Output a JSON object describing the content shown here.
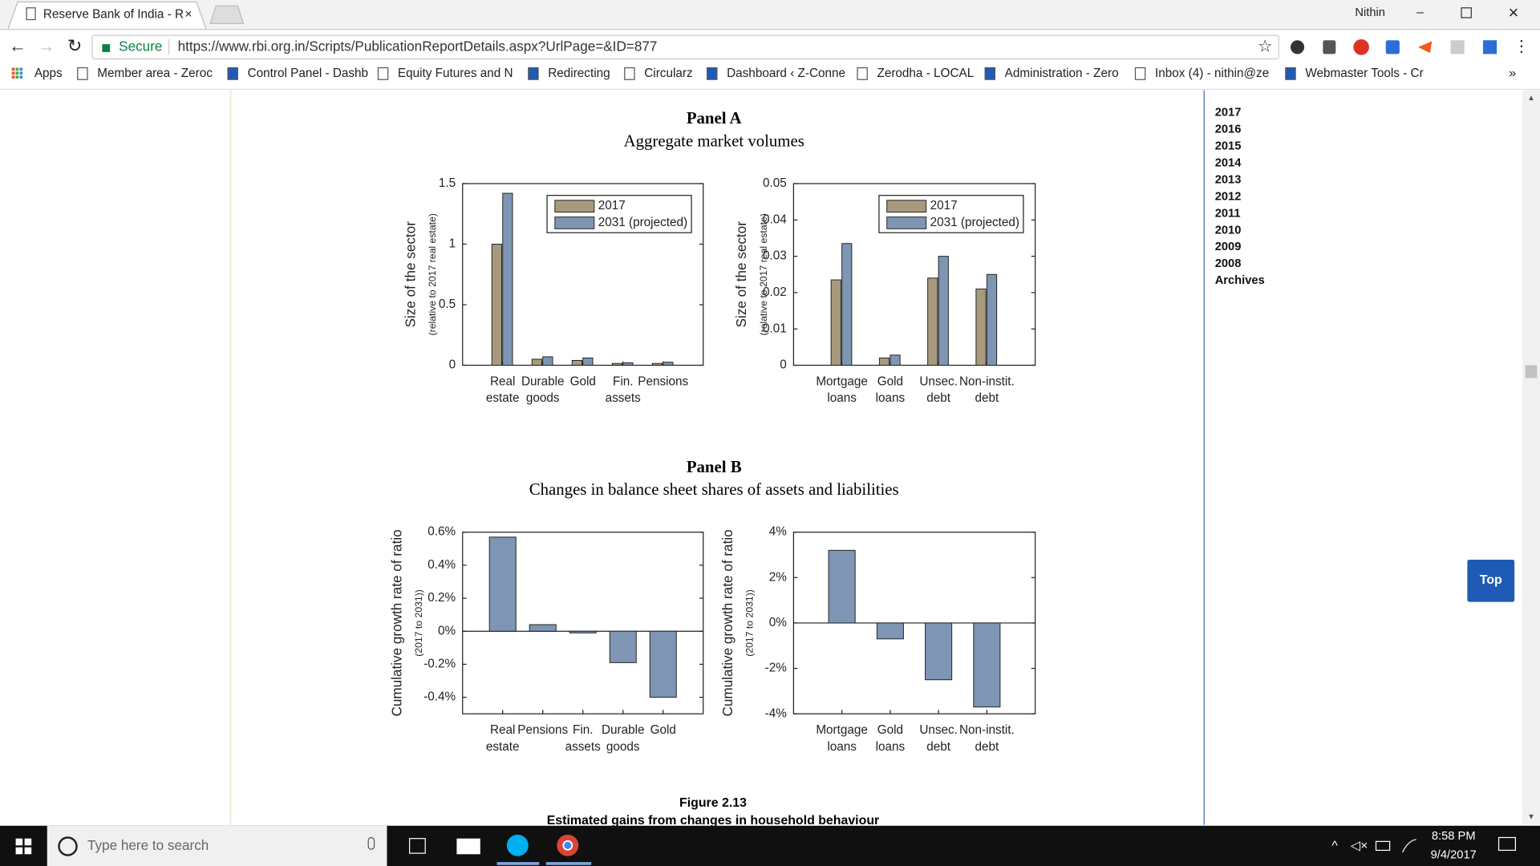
{
  "browser": {
    "tab_title": "Reserve Bank of India - R",
    "user": "Nithin",
    "secure": "Secure",
    "url": "https://www.rbi.org.in/Scripts/PublicationReportDetails.aspx?UrlPage=&ID=877",
    "bookmarks": [
      "Apps",
      "Member area - Zeroc",
      "Control Panel - Dashb",
      "Equity Futures and N",
      "Redirecting",
      "Circularz",
      "Dashboard ‹ Z-Conne",
      "Zerodha - LOCAL",
      "Administration - Zero",
      "Inbox (4) - nithin@ze",
      "Webmaster Tools - Cr"
    ]
  },
  "panels": [
    {
      "title": "Panel A",
      "subtitle": "Aggregate market volumes",
      "charts": [
        {
          "type": "bar",
          "categories": [
            [
              "Real",
              "estate"
            ],
            [
              "Durable",
              "goods"
            ],
            [
              "Gold"
            ],
            [
              "Fin.",
              "assets"
            ],
            [
              "Pensions"
            ]
          ],
          "ylabel": "Size of the sector",
          "ylabel_note": "(relative to 2017 real estate)",
          "ylim": [
            0,
            1.5
          ],
          "yticks": [
            0,
            0.5,
            1,
            1.5
          ],
          "legend": "upper right",
          "series": [
            {
              "name": "2017",
              "color": "#a79a7c",
              "values": [
                1.0,
                0.05,
                0.04,
                0.015,
                0.015
              ]
            },
            {
              "name": "2031 (projected)",
              "color": "#7e96b4",
              "values": [
                1.42,
                0.07,
                0.06,
                0.02,
                0.025
              ]
            }
          ]
        },
        {
          "type": "bar",
          "categories": [
            [
              "Mortgage",
              "loans"
            ],
            [
              "Gold",
              "loans"
            ],
            [
              "Unsec.",
              "debt"
            ],
            [
              "Non-instit.",
              "debt"
            ]
          ],
          "ylabel": "Size of the sector",
          "ylabel_note": "(relative to 2017 real estate)",
          "ylim": [
            0,
            0.05
          ],
          "yticks": [
            0,
            0.01,
            0.02,
            0.03,
            0.04,
            0.05
          ],
          "legend": "upper right",
          "series": [
            {
              "name": "2017",
              "color": "#a79a7c",
              "values": [
                0.0235,
                0.002,
                0.024,
                0.021
              ]
            },
            {
              "name": "2031 (projected)",
              "color": "#7e96b4",
              "values": [
                0.0335,
                0.0028,
                0.03,
                0.025
              ]
            }
          ]
        }
      ]
    },
    {
      "title": "Panel B",
      "subtitle": "Changes in balance sheet shares of assets and liabilities",
      "charts": [
        {
          "type": "bar",
          "categories": [
            [
              "Real",
              "estate"
            ],
            [
              "Pensions"
            ],
            [
              "Fin.",
              "assets"
            ],
            [
              "Durable",
              "goods"
            ],
            [
              "Gold"
            ]
          ],
          "ylabel": "Cumulative growth rate of ratio",
          "ylabel_note": "(2017 to 2031))",
          "ylim": [
            -0.5,
            0.6
          ],
          "yticks": [
            {
              "value": -0.4,
              "label": "-0.4%"
            },
            {
              "value": -0.2,
              "label": "-0.2%"
            },
            {
              "value": 0,
              "label": "0%"
            },
            {
              "value": 0.2,
              "label": "0.2%"
            },
            {
              "value": 0.4,
              "label": "0.4%"
            },
            {
              "value": 0.6,
              "label": "0.6%"
            }
          ],
          "series": [
            {
              "color": "#7e96b4",
              "values": [
                0.57,
                0.04,
                -0.01,
                -0.19,
                -0.4
              ]
            }
          ]
        },
        {
          "type": "bar",
          "categories": [
            [
              "Mortgage",
              "loans"
            ],
            [
              "Gold",
              "loans"
            ],
            [
              "Unsec.",
              "debt"
            ],
            [
              "Non-instit.",
              "debt"
            ]
          ],
          "ylabel": "Cumulative growth rate of ratio",
          "ylabel_note": "(2017 to 2031))",
          "ylim": [
            -4,
            4
          ],
          "yticks": [
            {
              "value": -4,
              "label": "-4%"
            },
            {
              "value": -2,
              "label": "-2%"
            },
            {
              "value": 0,
              "label": "0%"
            },
            {
              "value": 2,
              "label": "2%"
            },
            {
              "value": 4,
              "label": "4%"
            }
          ],
          "series": [
            {
              "color": "#7e96b4",
              "values": [
                3.2,
                -0.7,
                -2.5,
                -3.7
              ]
            }
          ]
        }
      ]
    }
  ],
  "figure": {
    "number": "Figure 2.13",
    "caption": "Estimated gains from changes in household behaviour"
  },
  "sidebar": {
    "links": [
      "2017",
      "2016",
      "2015",
      "2014",
      "2013",
      "2012",
      "2011",
      "2010",
      "2009",
      "2008",
      "Archives"
    ]
  },
  "top_button": "Top",
  "taskbar": {
    "search": "Type here to search",
    "time": "8:58 PM",
    "date": "9/4/2017"
  }
}
